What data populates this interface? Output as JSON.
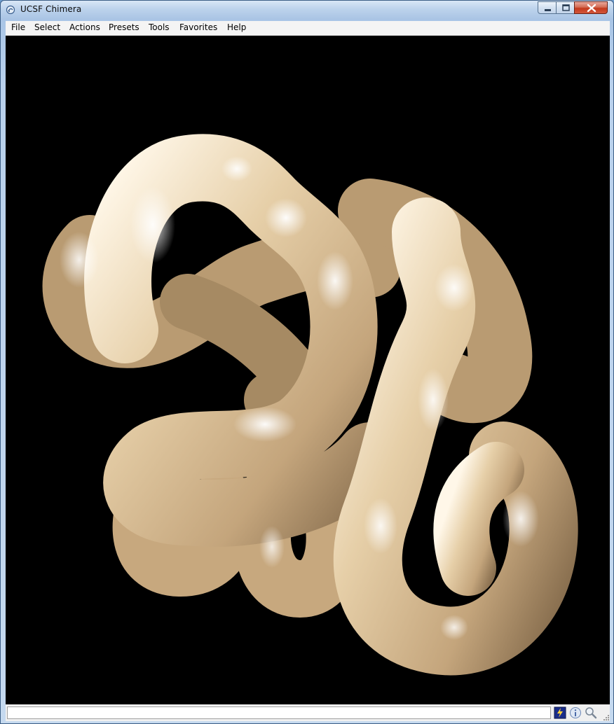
{
  "window": {
    "title": "UCSF Chimera",
    "icon": "chimera-app-icon",
    "controls": [
      "minimize-icon",
      "maximize-icon",
      "close-icon"
    ]
  },
  "menubar": {
    "items": [
      "File",
      "Select",
      "Actions",
      "Presets",
      "Tools",
      "Favorites",
      "Help"
    ]
  },
  "viewport": {
    "background": "#000000",
    "model_color": "#d9c09a",
    "content": "protein-ribbon-tube-model"
  },
  "statusbar": {
    "message": "",
    "icons": [
      "rapid-access-icon",
      "info-icon",
      "magnifier-icon"
    ]
  }
}
